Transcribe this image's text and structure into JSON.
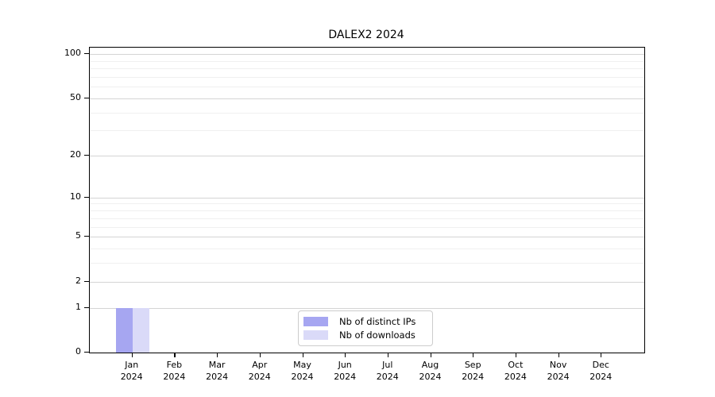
{
  "title": "DALEX2 2024",
  "chart_data": {
    "type": "bar",
    "title": "DALEX2 2024",
    "categories": [
      "Jan 2024",
      "Feb 2024",
      "Mar 2024",
      "Apr 2024",
      "May 2024",
      "Jun 2024",
      "Jul 2024",
      "Aug 2024",
      "Sep 2024",
      "Oct 2024",
      "Nov 2024",
      "Dec 2024"
    ],
    "x_ticks": [
      {
        "month": "Jan",
        "year": "2024"
      },
      {
        "month": "Feb",
        "year": "2024"
      },
      {
        "month": "Mar",
        "year": "2024"
      },
      {
        "month": "Apr",
        "year": "2024"
      },
      {
        "month": "May",
        "year": "2024"
      },
      {
        "month": "Jun",
        "year": "2024"
      },
      {
        "month": "Jul",
        "year": "2024"
      },
      {
        "month": "Aug",
        "year": "2024"
      },
      {
        "month": "Sep",
        "year": "2024"
      },
      {
        "month": "Oct",
        "year": "2024"
      },
      {
        "month": "Nov",
        "year": "2024"
      },
      {
        "month": "Dec",
        "year": "2024"
      }
    ],
    "series": [
      {
        "name": "Nb of distinct IPs",
        "color": "#a6a6f1",
        "values": [
          1,
          0,
          0,
          0,
          0,
          0,
          0,
          0,
          0,
          0,
          0,
          0
        ]
      },
      {
        "name": "Nb of downloads",
        "color": "#dadaf8",
        "values": [
          1,
          0,
          0,
          0,
          0,
          0,
          0,
          0,
          0,
          0,
          0,
          0
        ]
      }
    ],
    "y_scale": "log1p",
    "ylim": [
      0,
      100
    ],
    "y_major_ticks": [
      0,
      1,
      2,
      5,
      10,
      20,
      50,
      100
    ],
    "y_minor_gridlines": [
      3,
      4,
      6,
      7,
      8,
      9,
      30,
      40,
      60,
      70,
      80,
      90
    ],
    "grid": true,
    "legend_position": "lower center",
    "xlabel": "",
    "ylabel": ""
  },
  "colors": {
    "spine": "#000000",
    "grid_major": "#d4d4d4",
    "grid_minor": "#f0f0f0",
    "background": "#ffffff",
    "legend_border": "#cccccc"
  }
}
